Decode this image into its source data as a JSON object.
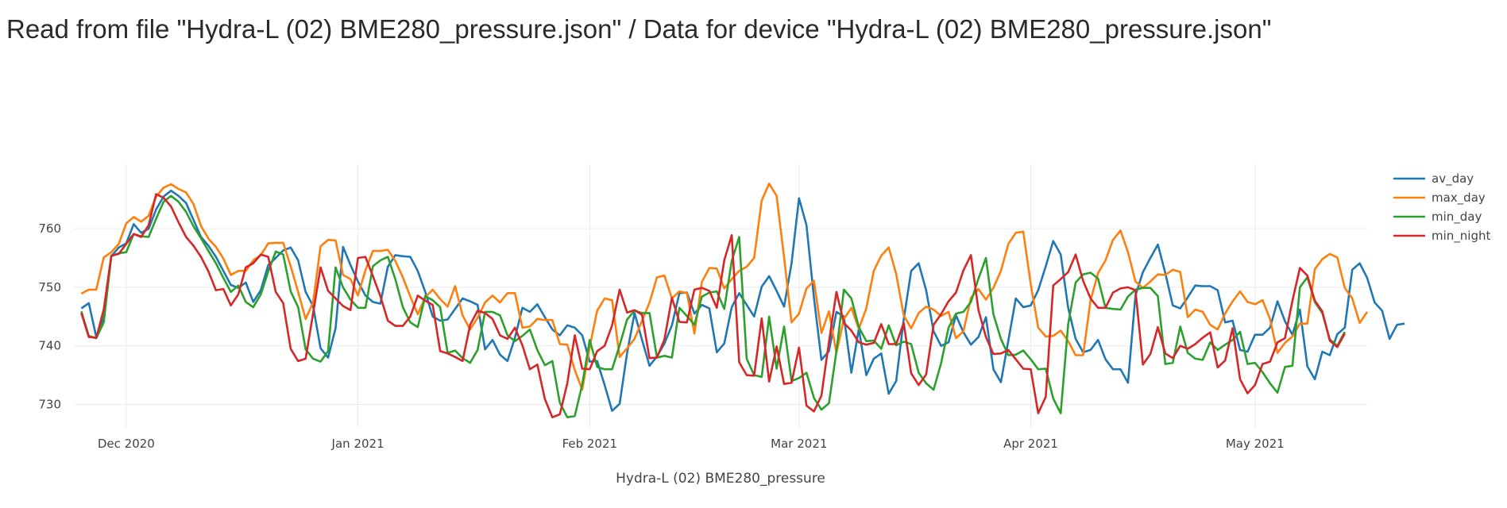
{
  "page": {
    "title": "Read from file \"Hydra-L (02) BME280_pressure.json\" / Data for device \"Hydra-L (02) BME280_pressure.json\""
  },
  "chart_data": {
    "type": "line",
    "title": "",
    "xlabel": "Hydra-L (02) BME280_pressure",
    "ylabel": "",
    "x_start": "2020-11-25",
    "x_end": "2021-05-15",
    "xlim": [
      "2020-11-24",
      "2021-05-16"
    ],
    "ylim": [
      726,
      771
    ],
    "grid": true,
    "legend_position": "right",
    "x_ticks": [
      {
        "date": "2020-12-01",
        "label": "Dec 2020"
      },
      {
        "date": "2021-01-01",
        "label": "Jan 2021"
      },
      {
        "date": "2021-02-01",
        "label": "Feb 2021"
      },
      {
        "date": "2021-03-01",
        "label": "Mar 2021"
      },
      {
        "date": "2021-04-01",
        "label": "Apr 2021"
      },
      {
        "date": "2021-05-01",
        "label": "May 2021"
      }
    ],
    "y_ticks": [
      730,
      740,
      750,
      760
    ],
    "colors": {
      "av_day": "#1f77b4",
      "max_day": "#ff7f0e",
      "min_day": "#2ca02c",
      "min_night": "#d62728"
    },
    "series": [
      {
        "name": "av_day",
        "color": "#1f77b4",
        "values": [
          746.4,
          747.3,
          741.5,
          744.8,
          755.3,
          756.8,
          757.5,
          760.8,
          759.3,
          760.0,
          763.3,
          765.5,
          766.5,
          765.6,
          764.4,
          761.5,
          758.6,
          757.1,
          755.2,
          752.8,
          750.4,
          749.9,
          750.8,
          747.5,
          749.5,
          753.8,
          755.0,
          756.3,
          756.8,
          754.6,
          749.2,
          746.8,
          739.6,
          738.0,
          743.0,
          756.9,
          753.8,
          751.0,
          748.6,
          747.5,
          747.2,
          753.5,
          755.5,
          755.3,
          755.2,
          752.8,
          749.2,
          745.0,
          744.3,
          744.5,
          746.3,
          748.1,
          747.6,
          747.0,
          739.4,
          741.0,
          738.5,
          737.4,
          741.4,
          746.5,
          745.8,
          747.1,
          744.9,
          742.8,
          741.8,
          743.5,
          743.1,
          741.8,
          737.3,
          737.4,
          733.3,
          728.9,
          730.1,
          738.8,
          745.6,
          741.0,
          736.6,
          738.2,
          740.4,
          743.5,
          749.0,
          749.1,
          745.5,
          747.0,
          746.4,
          738.9,
          740.4,
          746.6,
          749.0,
          747.0,
          745.0,
          750.1,
          751.9,
          749.4,
          746.7,
          754.1,
          765.2,
          760.6,
          748.2,
          737.6,
          739.1,
          745.8,
          745.0,
          735.4,
          742.9,
          735.0,
          737.8,
          738.7,
          731.8,
          734.0,
          744.5,
          752.8,
          754.1,
          749.5,
          742.5,
          740.0,
          740.6,
          745.2,
          742.3,
          740.2,
          741.5,
          744.9,
          736.0,
          733.8,
          740.9,
          748.1,
          746.6,
          746.9,
          749.5,
          753.6,
          757.9,
          755.6,
          746.5,
          741.2,
          738.9,
          739.3,
          741.0,
          737.7,
          736.0,
          736.0,
          733.7,
          748.6,
          752.6,
          755.0,
          757.3,
          752.4,
          746.9,
          746.4,
          748.3,
          750.3,
          750.2,
          750.2,
          749.5,
          744.0,
          744.3,
          739.3,
          739.0,
          741.9,
          741.9,
          743.1,
          747.6,
          744.2,
          741.9,
          746.2,
          736.5,
          734.3,
          739.0,
          738.4,
          742.0,
          743.1,
          753.0,
          754.1,
          751.6,
          747.4,
          746.0,
          741.2,
          743.6,
          743.8
        ]
      },
      {
        "name": "max_day",
        "color": "#ff7f0e",
        "values": [
          748.9,
          749.6,
          749.6,
          755.1,
          756.0,
          757.4,
          760.9,
          762.0,
          761.2,
          762.2,
          765.5,
          767.0,
          767.6,
          766.8,
          766.2,
          764.2,
          760.5,
          758.3,
          756.9,
          754.9,
          752.1,
          752.8,
          752.8,
          754.6,
          755.5,
          757.5,
          757.6,
          757.6,
          753.6,
          749.2,
          744.6,
          747.4,
          757.0,
          758.1,
          758.0,
          752.1,
          751.4,
          748.6,
          752.9,
          756.2,
          756.2,
          756.4,
          754.5,
          751.7,
          748.4,
          745.4,
          748.3,
          749.6,
          748.0,
          746.7,
          750.2,
          745.2,
          742.8,
          744.8,
          747.4,
          748.6,
          747.4,
          749.0,
          749.0,
          743.1,
          743.3,
          744.6,
          744.4,
          744.4,
          740.3,
          740.2,
          735.9,
          732.5,
          739.8,
          746.0,
          748.1,
          747.8,
          738.1,
          739.6,
          741.2,
          744.3,
          747.4,
          751.7,
          752.0,
          748.1,
          749.3,
          749.0,
          742.1,
          750.9,
          753.3,
          753.2,
          749.8,
          751.4,
          752.8,
          753.5,
          755.0,
          764.8,
          767.7,
          765.6,
          755.1,
          744.0,
          745.5,
          749.8,
          751.1,
          742.2,
          745.9,
          738.8,
          744.6,
          746.5,
          742.9,
          746.4,
          752.8,
          755.4,
          756.8,
          752.3,
          745.2,
          743.0,
          745.6,
          746.7,
          746.2,
          745.1,
          745.8,
          741.3,
          742.5,
          748.2,
          749.7,
          747.9,
          749.9,
          752.8,
          757.4,
          759.3,
          759.5,
          750.5,
          743.1,
          741.6,
          741.7,
          742.6,
          740.8,
          738.4,
          738.4,
          747.8,
          752.4,
          754.6,
          758.1,
          759.7,
          756.0,
          751.0,
          749.9,
          751.0,
          752.2,
          752.1,
          753.0,
          752.6,
          744.9,
          746.2,
          745.8,
          743.6,
          742.8,
          745.5,
          747.6,
          749.3,
          747.5,
          747.1,
          747.8,
          744.6,
          738.8,
          740.5,
          741.6,
          743.8,
          743.8,
          753.1,
          754.8,
          755.7,
          755.1,
          749.9,
          748.1,
          743.9,
          745.8
        ]
      },
      {
        "name": "min_day",
        "color": "#2ca02c",
        "values": [
          745.9,
          741.7,
          741.3,
          744.0,
          755.3,
          755.8,
          756.0,
          759.1,
          758.7,
          758.6,
          761.7,
          764.6,
          765.6,
          764.6,
          762.9,
          760.4,
          758.4,
          756.2,
          754.1,
          751.6,
          749.2,
          750.3,
          747.5,
          746.6,
          748.8,
          752.7,
          756.1,
          755.6,
          749.3,
          746.6,
          739.4,
          737.8,
          737.3,
          739.1,
          753.4,
          750.0,
          747.9,
          746.5,
          746.5,
          753.6,
          754.6,
          755.2,
          751.4,
          746.6,
          744.0,
          743.2,
          748.5,
          747.8,
          746.6,
          738.8,
          739.2,
          737.9,
          737.1,
          739.3,
          745.8,
          745.8,
          745.2,
          741.8,
          740.8,
          741.7,
          742.8,
          739.3,
          736.7,
          737.4,
          730.3,
          727.8,
          728.0,
          733.4,
          741.0,
          736.4,
          736.0,
          736.0,
          740.1,
          744.5,
          746.0,
          745.6,
          745.6,
          738.0,
          738.3,
          738.0,
          746.5,
          745.1,
          743.6,
          748.4,
          749.1,
          749.3,
          746.3,
          754.5,
          758.6,
          737.8,
          735.0,
          734.7,
          745.0,
          736.1,
          743.3,
          734.0,
          734.5,
          735.4,
          731.1,
          729.1,
          730.2,
          739.1,
          749.6,
          748.1,
          743.2,
          740.8,
          740.9,
          739.5,
          743.5,
          740.1,
          740.7,
          740.3,
          735.4,
          733.6,
          732.5,
          737.0,
          743.1,
          745.5,
          745.8,
          747.5,
          751.5,
          755.0,
          745.4,
          741.2,
          738.4,
          738.5,
          739.2,
          737.7,
          736.0,
          736.1,
          731.0,
          728.5,
          743.7,
          750.8,
          752.2,
          752.5,
          751.5,
          746.5,
          746.3,
          746.2,
          748.4,
          749.6,
          749.9,
          749.9,
          748.5,
          736.9,
          737.1,
          743.3,
          738.8,
          737.8,
          737.6,
          740.6,
          739.3,
          740.2,
          741.0,
          742.4,
          736.9,
          737.1,
          735.5,
          733.6,
          732.0,
          736.4,
          736.6,
          750.0,
          751.7,
          747.5,
          745.6,
          741.1,
          740.0,
          742.4
        ]
      },
      {
        "name": "min_night",
        "color": "#d62728",
        "values": [
          745.6,
          741.5,
          741.4,
          746.2,
          755.4,
          755.7,
          757.4,
          759.1,
          758.6,
          760.6,
          765.9,
          765.3,
          763.8,
          761.1,
          758.6,
          757.1,
          755.2,
          752.7,
          749.5,
          749.7,
          746.9,
          748.8,
          753.4,
          754.1,
          755.6,
          755.2,
          749.2,
          747.3,
          739.5,
          737.4,
          737.8,
          745.5,
          753.4,
          749.4,
          748.1,
          746.8,
          746.1,
          755.0,
          755.2,
          751.9,
          748.5,
          744.3,
          743.4,
          743.4,
          745.0,
          748.6,
          747.7,
          747.0,
          739.1,
          738.7,
          738.1,
          737.4,
          743.6,
          746.0,
          745.6,
          744.6,
          741.8,
          741.2,
          743.1,
          740.1,
          736.0,
          736.8,
          730.9,
          727.8,
          728.3,
          733.6,
          741.8,
          736.1,
          736.0,
          739.1,
          740.0,
          743.5,
          749.6,
          745.7,
          746.1,
          745.3,
          737.9,
          738.0,
          741.1,
          748.2,
          744.1,
          744.0,
          749.6,
          749.9,
          749.4,
          746.5,
          754.6,
          758.9,
          737.2,
          735.0,
          734.9,
          744.7,
          733.9,
          739.9,
          733.5,
          733.7,
          739.7,
          729.8,
          728.8,
          731.5,
          740.7,
          749.2,
          743.9,
          742.6,
          740.6,
          740.2,
          740.5,
          743.7,
          740.3,
          740.3,
          743.9,
          735.3,
          733.3,
          735.1,
          743.6,
          745.4,
          747.6,
          749.1,
          752.9,
          755.5,
          746.1,
          741.5,
          738.6,
          738.7,
          739.3,
          737.7,
          736.1,
          736.0,
          728.5,
          731.3,
          750.3,
          751.4,
          752.6,
          755.6,
          751.1,
          748.1,
          746.5,
          746.5,
          749.1,
          749.8,
          750.0,
          749.5,
          736.8,
          738.6,
          743.2,
          738.7,
          737.9,
          740.0,
          739.5,
          740.3,
          741.4,
          742.3,
          736.3,
          737.5,
          743.0,
          734.3,
          731.9,
          733.3,
          736.9,
          737.3,
          740.6,
          741.3,
          747.7,
          753.3,
          752.0,
          747.7,
          745.9,
          740.9,
          739.8,
          742.1
        ]
      }
    ]
  }
}
